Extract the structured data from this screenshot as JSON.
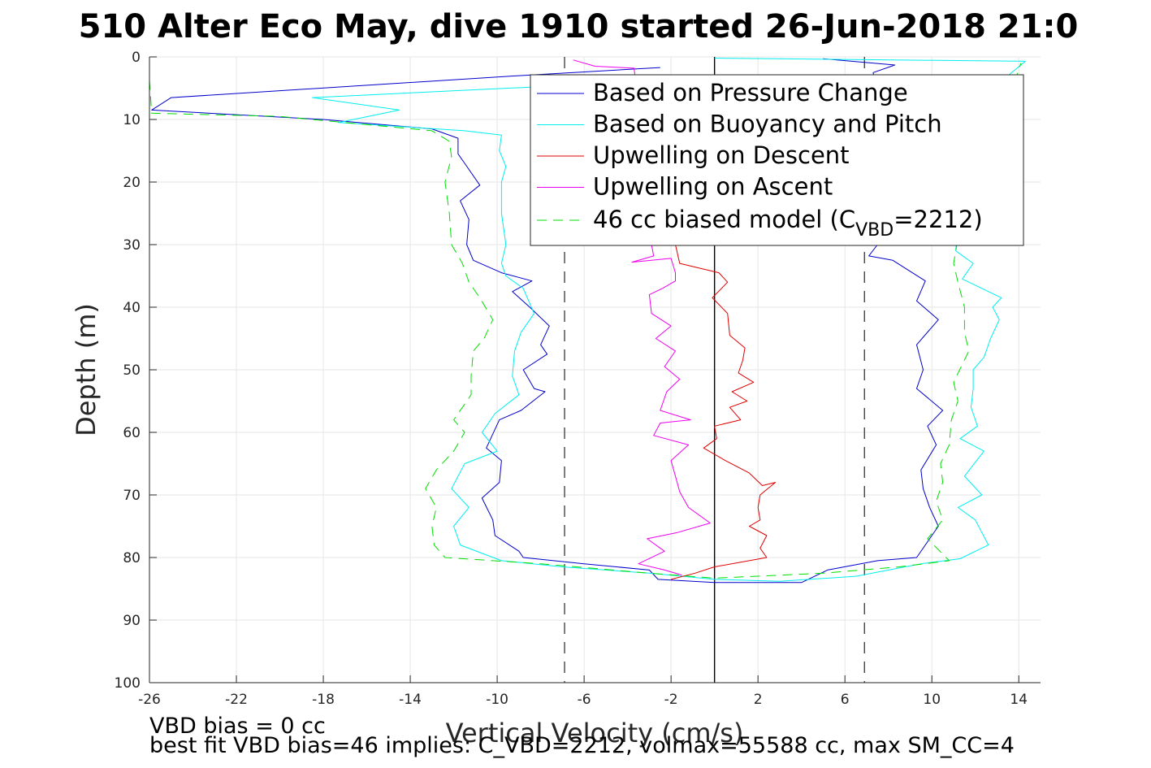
{
  "chart_data": {
    "type": "line",
    "title": "510 Alter Eco May, dive 1910 started 26-Jun-2018 21:0",
    "xlabel": "Vertical Velocity (cm/s)",
    "ylabel": "Depth (m)",
    "xlim": [
      -26,
      15
    ],
    "ylim": [
      0,
      100
    ],
    "y_reversed": true,
    "grid": true,
    "xticks": [
      -26,
      -22,
      -18,
      -14,
      -10,
      -6,
      -2,
      2,
      6,
      10,
      14
    ],
    "yticks": [
      0,
      10,
      20,
      30,
      40,
      50,
      60,
      70,
      80,
      90,
      100
    ],
    "reference_lines": [
      {
        "x": -6.9,
        "style": "dashed",
        "color": "#444444"
      },
      {
        "x": 0,
        "style": "solid",
        "color": "#000000"
      },
      {
        "x": 6.9,
        "style": "dashed",
        "color": "#444444"
      }
    ],
    "legend_position": "top-right",
    "series": [
      {
        "name": "Based on Pressure Change",
        "color": "#0000cc",
        "style": "solid",
        "points": [
          [
            -2.5,
            1.7
          ],
          [
            -9,
            3
          ],
          [
            -25,
            6.5
          ],
          [
            -25.9,
            8.5
          ],
          [
            -18,
            10
          ],
          [
            -13,
            11.5
          ],
          [
            -11.8,
            13
          ],
          [
            -11.8,
            15.5
          ],
          [
            -11.5,
            17
          ],
          [
            -10.8,
            20.5
          ],
          [
            -11.7,
            23
          ],
          [
            -11.3,
            26
          ],
          [
            -11.4,
            30
          ],
          [
            -11.1,
            32.5
          ],
          [
            -9.8,
            34.5
          ],
          [
            -8.4,
            35.8
          ],
          [
            -9.3,
            37.5
          ],
          [
            -8.5,
            40
          ],
          [
            -7.6,
            43
          ],
          [
            -8,
            46
          ],
          [
            -7.7,
            47.5
          ],
          [
            -8.8,
            50
          ],
          [
            -8.3,
            53
          ],
          [
            -7.8,
            53.5
          ],
          [
            -8.9,
            56.5
          ],
          [
            -9.9,
            58
          ],
          [
            -10.5,
            62.5
          ],
          [
            -9.8,
            64.5
          ],
          [
            -9.9,
            68
          ],
          [
            -10.7,
            70.5
          ],
          [
            -10.2,
            74
          ],
          [
            -10.1,
            76.5
          ],
          [
            -9,
            79
          ],
          [
            -8.8,
            80
          ],
          [
            -6,
            81
          ],
          [
            -3,
            82
          ],
          [
            -2.6,
            83.5
          ],
          [
            0,
            84
          ],
          [
            4,
            84
          ],
          [
            5.2,
            82
          ],
          [
            7.5,
            80.5
          ],
          [
            9.3,
            80
          ],
          [
            9.9,
            77
          ],
          [
            10.3,
            75
          ],
          [
            9.9,
            72
          ],
          [
            9.6,
            69
          ],
          [
            9.5,
            66
          ],
          [
            10.2,
            62
          ],
          [
            9.8,
            59
          ],
          [
            10.5,
            56.5
          ],
          [
            9.3,
            53
          ],
          [
            9.6,
            50
          ],
          [
            9.3,
            46
          ],
          [
            10.3,
            42
          ],
          [
            9.3,
            39
          ],
          [
            9.7,
            35.8
          ],
          [
            8.2,
            32.5
          ],
          [
            7.1,
            31.8
          ],
          [
            7.5,
            30
          ],
          [
            7.3,
            15
          ],
          [
            7.5,
            7
          ],
          [
            7.3,
            2.5
          ],
          [
            8.3,
            1.3
          ],
          [
            5,
            0.3
          ]
        ]
      },
      {
        "name": "Based on Buoyancy and Pitch",
        "color": "#00eeee",
        "style": "solid",
        "points": [
          [
            -5.5,
            3
          ],
          [
            -6.5,
            4.5
          ],
          [
            -18.5,
            6.5
          ],
          [
            -14.5,
            8.5
          ],
          [
            -17.3,
            10.5
          ],
          [
            -11.5,
            11.8
          ],
          [
            -9.8,
            12.5
          ],
          [
            -9.9,
            15
          ],
          [
            -9.6,
            17.5
          ],
          [
            -9.8,
            20
          ],
          [
            -9.8,
            25
          ],
          [
            -9.6,
            30
          ],
          [
            -9.8,
            33
          ],
          [
            -9.6,
            35
          ],
          [
            -8.8,
            37
          ],
          [
            -8.3,
            41
          ],
          [
            -8.9,
            44
          ],
          [
            -9.2,
            47
          ],
          [
            -9.3,
            51
          ],
          [
            -9,
            54
          ],
          [
            -10.1,
            57
          ],
          [
            -10.7,
            60
          ],
          [
            -10,
            63
          ],
          [
            -11.5,
            65
          ],
          [
            -12.1,
            69
          ],
          [
            -11.3,
            72
          ],
          [
            -12,
            75
          ],
          [
            -11.7,
            78
          ],
          [
            -9.8,
            80.5
          ],
          [
            -7,
            81.5
          ],
          [
            -3,
            82.5
          ],
          [
            0,
            83.5
          ],
          [
            3,
            83.8
          ],
          [
            6.5,
            83
          ],
          [
            9.5,
            81
          ],
          [
            11.3,
            80.2
          ],
          [
            12.6,
            78
          ],
          [
            12,
            74
          ],
          [
            11.2,
            72
          ],
          [
            12.3,
            70
          ],
          [
            11.5,
            67
          ],
          [
            12.4,
            63
          ],
          [
            11.3,
            61
          ],
          [
            12.1,
            59
          ],
          [
            11.8,
            56
          ],
          [
            11.9,
            53
          ],
          [
            11.9,
            50
          ],
          [
            12.4,
            48
          ],
          [
            12.7,
            45
          ],
          [
            13.1,
            42
          ],
          [
            12.8,
            40
          ],
          [
            13.2,
            38.5
          ],
          [
            11.4,
            35.5
          ],
          [
            11.9,
            33
          ],
          [
            11.1,
            31
          ],
          [
            11.3,
            18
          ],
          [
            12.9,
            11
          ],
          [
            13.6,
            6
          ],
          [
            13.5,
            3
          ],
          [
            14.3,
            0.7
          ],
          [
            0,
            0.2
          ]
        ]
      },
      {
        "name": "Upwelling on Descent",
        "color": "#e00000",
        "style": "solid",
        "points": [
          [
            -4,
            8.5
          ],
          [
            -1.5,
            7.5
          ],
          [
            -1.8,
            10
          ],
          [
            -1.7,
            12
          ],
          [
            -1.8,
            15
          ],
          [
            -1.6,
            18
          ],
          [
            -1.8,
            22
          ],
          [
            -1.7,
            26
          ],
          [
            -1.8,
            30
          ],
          [
            -1.6,
            33
          ],
          [
            0.2,
            34.5
          ],
          [
            0.6,
            36
          ],
          [
            -0.1,
            38.5
          ],
          [
            0.6,
            41
          ],
          [
            0.7,
            44.5
          ],
          [
            1.4,
            46.5
          ],
          [
            1.3,
            48.5
          ],
          [
            1.1,
            50.5
          ],
          [
            1.8,
            52
          ],
          [
            0.8,
            53.5
          ],
          [
            1.5,
            55
          ],
          [
            0.7,
            56
          ],
          [
            1.2,
            58
          ],
          [
            0,
            59
          ],
          [
            0.1,
            61
          ],
          [
            -0.5,
            62.5
          ],
          [
            0.5,
            64.5
          ],
          [
            1.6,
            66.5
          ],
          [
            2.2,
            68.5
          ],
          [
            2.8,
            68
          ],
          [
            2.1,
            70
          ],
          [
            2,
            72
          ],
          [
            2.1,
            74
          ],
          [
            1.6,
            75
          ],
          [
            2.4,
            76.5
          ],
          [
            2.1,
            78.5
          ],
          [
            2.4,
            80
          ],
          [
            0,
            81.5
          ],
          [
            -0.9,
            82.5
          ],
          [
            -2,
            83.5
          ]
        ]
      },
      {
        "name": "Upwelling on Ascent",
        "color": "#ee00ee",
        "style": "solid",
        "points": [
          [
            -6.5,
            0.5
          ],
          [
            -5.5,
            1.5
          ],
          [
            -3.7,
            1.8
          ],
          [
            -2.9,
            30
          ],
          [
            -2.8,
            31.8
          ],
          [
            -3.8,
            32.8
          ],
          [
            -2,
            32.2
          ],
          [
            -1.8,
            34.5
          ],
          [
            -1.8,
            35.8
          ],
          [
            -2.4,
            37
          ],
          [
            -3,
            38
          ],
          [
            -2.9,
            41
          ],
          [
            -2,
            43
          ],
          [
            -2.7,
            45
          ],
          [
            -1.8,
            47
          ],
          [
            -2.3,
            49.5
          ],
          [
            -1.6,
            51.5
          ],
          [
            -2.2,
            53.5
          ],
          [
            -2.5,
            56.5
          ],
          [
            -1.1,
            58
          ],
          [
            -2.5,
            58.5
          ],
          [
            -2.8,
            60.5
          ],
          [
            -1.2,
            62
          ],
          [
            -2,
            64.5
          ],
          [
            -1.8,
            67
          ],
          [
            -1.6,
            69.5
          ],
          [
            -1.2,
            72
          ],
          [
            -0.2,
            74.5
          ],
          [
            -1.7,
            76
          ],
          [
            -3.1,
            77
          ],
          [
            -2.3,
            79
          ],
          [
            -3.5,
            81
          ],
          [
            -2.3,
            82
          ],
          [
            -1.5,
            82.8
          ]
        ]
      },
      {
        "name": "46 cc biased model (C_VBD=2212)",
        "color": "#00dd00",
        "style": "dashed",
        "points": [
          [
            -26,
            3.7
          ],
          [
            -25.9,
            9
          ],
          [
            -20,
            9.5
          ],
          [
            -13,
            11.8
          ],
          [
            -12.2,
            13.5
          ],
          [
            -12.1,
            16
          ],
          [
            -12.4,
            20
          ],
          [
            -12.2,
            25
          ],
          [
            -12.1,
            30
          ],
          [
            -11.6,
            33
          ],
          [
            -11.3,
            36
          ],
          [
            -10.8,
            38.5
          ],
          [
            -10.2,
            42
          ],
          [
            -10.6,
            45
          ],
          [
            -11.1,
            47
          ],
          [
            -11.2,
            51
          ],
          [
            -11.2,
            54
          ],
          [
            -12,
            58
          ],
          [
            -11.5,
            60
          ],
          [
            -12,
            63
          ],
          [
            -12.8,
            66
          ],
          [
            -13.3,
            69
          ],
          [
            -12.8,
            72
          ],
          [
            -13,
            75
          ],
          [
            -12.9,
            78
          ],
          [
            -12.4,
            80
          ],
          [
            -8,
            81
          ],
          [
            -3,
            82.5
          ],
          [
            0,
            83.3
          ],
          [
            5,
            82.5
          ],
          [
            8.5,
            81.5
          ],
          [
            10.8,
            80.5
          ],
          [
            9.8,
            77
          ],
          [
            10.5,
            74
          ],
          [
            10.2,
            71
          ],
          [
            10.5,
            68
          ],
          [
            10.4,
            65
          ],
          [
            10.8,
            62
          ],
          [
            10.9,
            58
          ],
          [
            11.2,
            55
          ],
          [
            11,
            52
          ],
          [
            11.7,
            47
          ],
          [
            11.5,
            44
          ],
          [
            11.5,
            40
          ],
          [
            11.2,
            36
          ],
          [
            11,
            33
          ],
          [
            11.2,
            29
          ],
          [
            13.2,
            14
          ],
          [
            13.8,
            4
          ],
          [
            14.1,
            1
          ]
        ]
      }
    ]
  },
  "legend": {
    "entries": [
      {
        "label": "Based on Pressure Change",
        "color": "#0000cc",
        "dashed": false
      },
      {
        "label": "Based on Buoyancy and Pitch",
        "color": "#00eeee",
        "dashed": false
      },
      {
        "label": "Upwelling on Descent",
        "color": "#e00000",
        "dashed": false
      },
      {
        "label": "Upwelling on Ascent",
        "color": "#ee00ee",
        "dashed": false
      }
    ],
    "model_entry": {
      "color": "#00dd00",
      "prefix": "46 cc biased model (C",
      "subscript": "VBD",
      "suffix": "=2212)"
    }
  },
  "footer": {
    "line1": "VBD bias = 0 cc",
    "line2": "best fit VBD bias=46 implies: C_VBD=2212, volmax=55588 cc, max SM_CC=4"
  }
}
